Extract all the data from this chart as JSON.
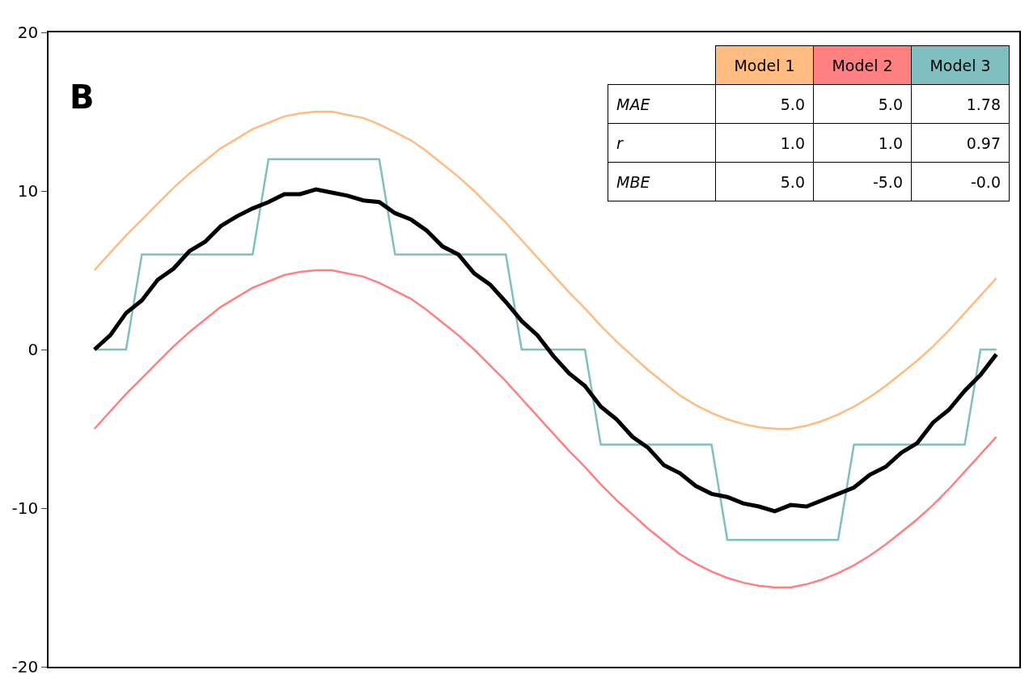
{
  "chart_data": {
    "type": "line",
    "title": "B",
    "categories": [
      null,
      null,
      null,
      null,
      null,
      null,
      null,
      null,
      null,
      null,
      null,
      null,
      null,
      null,
      null,
      null,
      null,
      null,
      null,
      null,
      null,
      null,
      null,
      null,
      null,
      null,
      null,
      null,
      null,
      null,
      null,
      null,
      null,
      null,
      null,
      null,
      null,
      null,
      null,
      null,
      null,
      null,
      null,
      null,
      null,
      null,
      null,
      null,
      null,
      null,
      null,
      null,
      null,
      null,
      null,
      null,
      null,
      null
    ],
    "series": [
      {
        "name": "Model 1",
        "color": "#ffbb80",
        "values": [
          5,
          6.1,
          7.2,
          8.2,
          9.2,
          10.2,
          11.1,
          11.9,
          12.7,
          13.3,
          13.9,
          14.3,
          14.7,
          14.9,
          15,
          15,
          14.8,
          14.6,
          14.2,
          13.7,
          13.2,
          12.5,
          11.7,
          10.9,
          10,
          9,
          8,
          6.9,
          5.8,
          4.7,
          3.6,
          2.6,
          1.5,
          0.5,
          -0.4,
          -1.3,
          -2.1,
          -2.9,
          -3.5,
          -4,
          -4.4,
          -4.7,
          -4.9,
          -5,
          -5,
          -4.8,
          -4.5,
          -4.1,
          -3.6,
          -3,
          -2.3,
          -1.5,
          -0.7,
          0.2,
          1.2,
          2.3,
          3.4,
          4.5
        ]
      },
      {
        "name": "Model 2",
        "color": "#ff8080",
        "values": [
          -5,
          -3.9,
          -2.8,
          -1.8,
          -0.8,
          0.2,
          1.1,
          1.9,
          2.7,
          3.3,
          3.9,
          4.3,
          4.7,
          4.9,
          5,
          5,
          4.8,
          4.6,
          4.2,
          3.7,
          3.2,
          2.5,
          1.7,
          0.9,
          0,
          -1,
          -2,
          -3.1,
          -4.2,
          -5.3,
          -6.4,
          -7.4,
          -8.5,
          -9.5,
          -10.4,
          -11.3,
          -12.1,
          -12.9,
          -13.5,
          -14,
          -14.4,
          -14.7,
          -14.9,
          -15,
          -15,
          -14.8,
          -14.5,
          -14.1,
          -13.6,
          -13,
          -12.3,
          -11.5,
          -10.7,
          -9.8,
          -8.8,
          -7.7,
          -6.6,
          -5.5
        ]
      },
      {
        "name": "Model 3",
        "color": "#80bfbf",
        "values": [
          0,
          0,
          0,
          6,
          6,
          6,
          6,
          6,
          6,
          6,
          6,
          12,
          12,
          12,
          12,
          12,
          12,
          12,
          12,
          6,
          6,
          6,
          6,
          6,
          6,
          6,
          6,
          0,
          0,
          0,
          0,
          0,
          -6,
          -6,
          -6,
          -6,
          -6,
          -6,
          -6,
          -6,
          -12,
          -12,
          -12,
          -12,
          -12,
          -12,
          -12,
          -12,
          -6,
          -6,
          -6,
          -6,
          -6,
          -6,
          -6,
          -6,
          0,
          0
        ]
      },
      {
        "color": "#000000",
        "values": [
          0,
          0.9,
          2.3,
          3.1,
          4.4,
          5.1,
          6.2,
          6.8,
          7.8,
          8.4,
          8.9,
          9.3,
          9.8,
          9.8,
          10.1,
          9.9,
          9.7,
          9.4,
          9.3,
          8.6,
          8.2,
          7.5,
          6.5,
          6.0,
          4.8,
          4.1,
          3.0,
          1.8,
          0.9,
          -0.4,
          -1.5,
          -2.3,
          -3.6,
          -4.4,
          -5.5,
          -6.2,
          -7.3,
          -7.8,
          -8.6,
          -9.1,
          -9.3,
          -9.7,
          -9.9,
          -10.2,
          -9.8,
          -9.9,
          -9.5,
          -9.1,
          -8.7,
          -7.9,
          -7.4,
          -6.5,
          -5.9,
          -4.6,
          -3.8,
          -2.6,
          -1.6,
          -0.3
        ]
      }
    ],
    "ylim": [
      -20,
      20
    ],
    "yticks": [
      -20,
      -10,
      0,
      10,
      20
    ],
    "tick_labels": "y",
    "grid": false,
    "legend": "top right",
    "marker": "none",
    "line_style": "solid",
    "annotations": [
      "MAE",
      "5.0",
      "5.0",
      "1.78",
      "r",
      "1.0",
      "1.0",
      "0.97",
      "MBE",
      "5.0",
      "-5.0",
      "-0.0"
    ]
  }
}
